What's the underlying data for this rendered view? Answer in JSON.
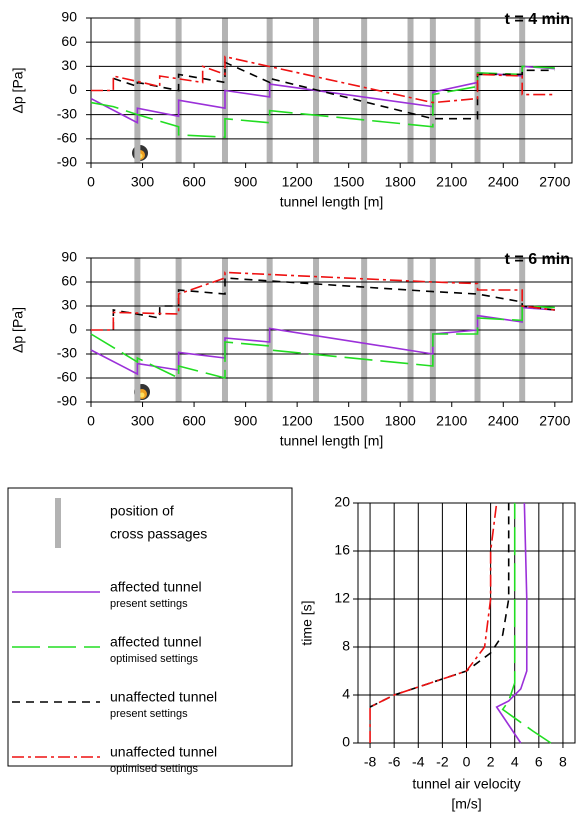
{
  "chart_data": [
    {
      "type": "line",
      "title": "t = 4 min",
      "xlabel": "tunnel length [m]",
      "ylabel": "Δp [Pa]",
      "xlim": [
        0,
        2800
      ],
      "ylim": [
        -90,
        90
      ],
      "xticks": [
        0,
        300,
        600,
        900,
        1200,
        1500,
        1800,
        2100,
        2400,
        2700
      ],
      "yticks": [
        -90,
        -60,
        -30,
        0,
        30,
        60,
        90
      ],
      "grid": "y",
      "cross_passages": {
        "color": "#b3b3b3",
        "x": [
          270,
          510,
          780,
          1040,
          1310,
          1590,
          1860,
          1990,
          2250,
          2510
        ]
      },
      "series": [
        {
          "color": "#9b30d9",
          "dash": "none",
          "x": [
            0,
            270,
            270,
            510,
            510,
            780,
            780,
            1040,
            1040,
            1990,
            1990,
            2250,
            2250,
            2510,
            2510,
            2700
          ],
          "values": [
            -10,
            -40,
            -22,
            -32,
            -12,
            -22,
            0,
            -8,
            8,
            -20,
            -2,
            10,
            22,
            18,
            30,
            27
          ]
        },
        {
          "color": "#22dd22",
          "dash": "28,8",
          "x": [
            0,
            130,
            270,
            270,
            510,
            510,
            780,
            780,
            1040,
            1040,
            1990,
            1990,
            2250,
            2250,
            2510,
            2510,
            2700
          ],
          "values": [
            -15,
            -20,
            -30,
            -30,
            -45,
            -55,
            -58,
            -35,
            -40,
            -25,
            -45,
            -5,
            5,
            22,
            20,
            30,
            28
          ]
        },
        {
          "color": "#000000",
          "dash": "8,6",
          "x": [
            130,
            270,
            270,
            510,
            510,
            780,
            780,
            1040,
            1040,
            1990,
            2250,
            2250,
            2510,
            2510,
            2700
          ],
          "values": [
            15,
            5,
            10,
            0,
            20,
            10,
            35,
            10,
            15,
            -35,
            -35,
            20,
            20,
            25,
            25
          ]
        },
        {
          "color": "#ee1111",
          "dash": "12,4,3,4",
          "x": [
            0,
            130,
            130,
            400,
            400,
            650,
            650,
            780,
            780,
            1990,
            1990,
            2250,
            2250,
            2510,
            2510,
            2700
          ],
          "values": [
            0,
            0,
            18,
            5,
            18,
            10,
            30,
            20,
            42,
            -15,
            -15,
            -10,
            20,
            18,
            -5,
            -5
          ]
        }
      ]
    },
    {
      "type": "line",
      "title": "t = 6 min",
      "xlabel": "tunnel length [m]",
      "ylabel": "Δp [Pa]",
      "xlim": [
        0,
        2800
      ],
      "ylim": [
        -90,
        90
      ],
      "xticks": [
        0,
        300,
        600,
        900,
        1200,
        1500,
        1800,
        2100,
        2400,
        2700
      ],
      "yticks": [
        -90,
        -60,
        -30,
        0,
        30,
        60,
        90
      ],
      "grid": "y",
      "cross_passages": {
        "color": "#b3b3b3",
        "x": [
          270,
          510,
          780,
          1040,
          1310,
          1590,
          1860,
          1990,
          2250,
          2510
        ]
      },
      "series": [
        {
          "color": "#9b30d9",
          "dash": "none",
          "x": [
            0,
            270,
            270,
            510,
            510,
            780,
            780,
            1040,
            1040,
            1990,
            1990,
            2250,
            2250,
            2510,
            2510,
            2700
          ],
          "values": [
            -25,
            -55,
            -42,
            -50,
            -28,
            -35,
            -10,
            -15,
            2,
            -30,
            -5,
            0,
            18,
            10,
            28,
            25
          ]
        },
        {
          "color": "#22dd22",
          "dash": "28,8",
          "x": [
            0,
            270,
            270,
            510,
            510,
            780,
            780,
            1040,
            1040,
            1990,
            1990,
            2250,
            2250,
            2510,
            2510,
            2700
          ],
          "values": [
            -5,
            -40,
            -35,
            -60,
            -45,
            -60,
            -15,
            -20,
            -25,
            -45,
            -5,
            -5,
            15,
            12,
            30,
            28
          ]
        },
        {
          "color": "#000000",
          "dash": "8,6",
          "x": [
            130,
            130,
            400,
            400,
            510,
            510,
            780,
            780,
            1990,
            2250,
            2250,
            2510,
            2510,
            2700
          ],
          "values": [
            0,
            25,
            15,
            30,
            30,
            50,
            45,
            65,
            48,
            45,
            45,
            35,
            30,
            25
          ]
        },
        {
          "color": "#ee1111",
          "dash": "12,4,3,4",
          "x": [
            0,
            130,
            130,
            510,
            510,
            780,
            780,
            1990,
            2250,
            2250,
            2510,
            2510,
            2700
          ],
          "values": [
            0,
            0,
            22,
            20,
            45,
            65,
            72,
            60,
            58,
            50,
            50,
            30,
            25
          ]
        }
      ]
    },
    {
      "type": "line",
      "xlabel": [
        "tunnel air velocity",
        "[m/s]"
      ],
      "ylabel": "time [s]",
      "xlim": [
        -9,
        9
      ],
      "ylim": [
        0,
        20
      ],
      "xticks": [
        -8,
        -6,
        -4,
        -2,
        0,
        2,
        4,
        6,
        8
      ],
      "yticks": [
        0,
        4,
        8,
        12,
        16,
        20
      ],
      "grid": "xy",
      "series": [
        {
          "color": "#9b30d9",
          "dash": "none",
          "x": [
            4.5,
            3.5,
            2.5,
            3.5,
            4.5,
            5,
            5,
            4.8
          ],
          "values": [
            0,
            1.5,
            3,
            3.5,
            4.5,
            6,
            12,
            20
          ]
        },
        {
          "color": "#22dd22",
          "dash": "28,8",
          "x": [
            7,
            5.5,
            3,
            3.5,
            4,
            4,
            4,
            4
          ],
          "values": [
            0,
            1,
            2.8,
            3.5,
            5,
            8,
            14,
            20
          ]
        },
        {
          "color": "#000000",
          "dash": "8,6",
          "x": [
            -8,
            -6,
            -3,
            0,
            2,
            3,
            3.5,
            3.5
          ],
          "values": [
            3,
            4,
            5,
            6,
            7.5,
            9,
            12,
            20
          ]
        },
        {
          "color": "#ee1111",
          "dash": "12,4,3,4",
          "x": [
            -8,
            -8,
            -6,
            -3,
            0,
            1.5,
            2,
            2,
            2.5
          ],
          "values": [
            0,
            3,
            4,
            5,
            6,
            8,
            12,
            16,
            20
          ]
        }
      ]
    }
  ],
  "legend": {
    "cross_passages": {
      "label": [
        "position of",
        "cross passages"
      ],
      "color": "#b3b3b3"
    },
    "items": [
      {
        "name": "affected tunnel",
        "setting": "present settings",
        "color": "#9b30d9",
        "dash": "none"
      },
      {
        "name": "affected tunnel",
        "setting": "optimised settings",
        "color": "#22dd22",
        "dash": "28,8"
      },
      {
        "name": "unaffected tunnel",
        "setting": "present settings",
        "color": "#000000",
        "dash": "8,6"
      },
      {
        "name": "unaffected tunnel",
        "setting": "optimised settings",
        "color": "#ee1111",
        "dash": "12,4,3,4"
      }
    ]
  }
}
